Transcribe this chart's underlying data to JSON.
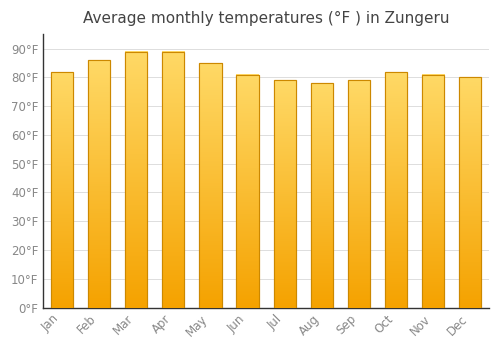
{
  "title": "Average monthly temperatures (°F ) in Zungeru",
  "months": [
    "Jan",
    "Feb",
    "Mar",
    "Apr",
    "May",
    "Jun",
    "Jul",
    "Aug",
    "Sep",
    "Oct",
    "Nov",
    "Dec"
  ],
  "values": [
    82,
    86,
    89,
    89,
    85,
    81,
    79,
    78,
    79,
    82,
    81,
    80
  ],
  "bar_color_top": "#FFD966",
  "bar_color_bottom": "#F5A200",
  "bar_edge_color": "#CC8800",
  "background_color": "#FFFFFF",
  "plot_bg_color": "#FFFFFF",
  "grid_color": "#DDDDDD",
  "text_color": "#888888",
  "title_color": "#444444",
  "axis_color": "#333333",
  "ylim": [
    0,
    95
  ],
  "yticks": [
    0,
    10,
    20,
    30,
    40,
    50,
    60,
    70,
    80,
    90
  ],
  "title_fontsize": 11,
  "tick_fontsize": 8.5,
  "bar_width": 0.6
}
